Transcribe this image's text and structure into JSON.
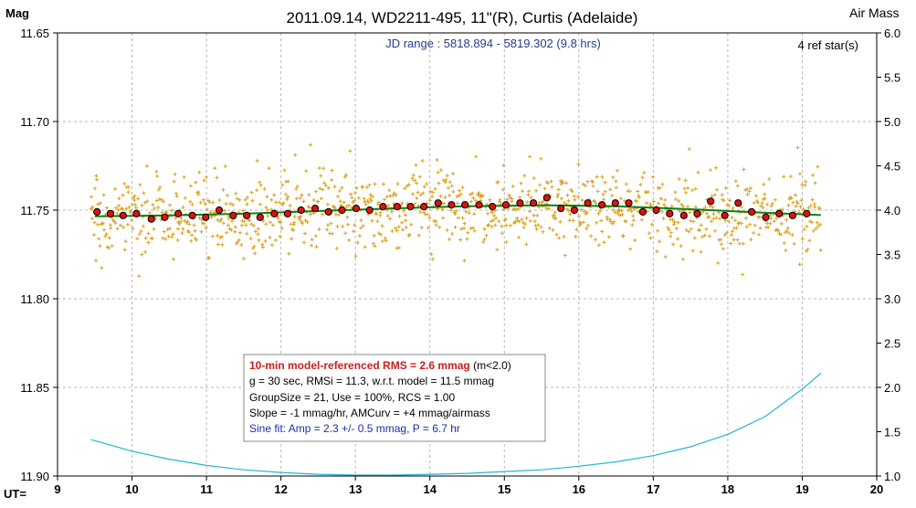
{
  "chart_data": {
    "type": "scatter",
    "title": "2011.09.14, WD2211-495, 11\"(R), Curtis (Adelaide)",
    "subtitle": "JD range : 5818.894 - 5819.302 (9.8 hrs)",
    "ref_stars": "4 ref star(s)",
    "ylabel_left": "Mag",
    "ylabel_right": "Air Mass",
    "xlabel": "UT=",
    "xlim": [
      9,
      20
    ],
    "ylim_left": [
      11.65,
      11.9
    ],
    "ylim_right": [
      1.0,
      6.0
    ],
    "left_inverted": true,
    "grid": true,
    "x_ticks": [
      "9",
      "10",
      "11",
      "12",
      "13",
      "14",
      "15",
      "16",
      "17",
      "18",
      "19",
      "20"
    ],
    "y_ticks_left": [
      "11.65",
      "11.70",
      "11.75",
      "11.80",
      "11.85",
      "11.90"
    ],
    "y_ticks_right": [
      "6.0",
      "5.5",
      "5.0",
      "4.5",
      "4.0",
      "3.5",
      "3.0",
      "2.5",
      "2.0",
      "1.5",
      "1.0"
    ],
    "raw_points_note": "",
    "raw_noise_mmag": 11.3,
    "group_points": {
      "x": [
        9.53,
        9.71,
        9.88,
        10.06,
        10.26,
        10.44,
        10.62,
        10.81,
        10.99,
        11.17,
        11.36,
        11.54,
        11.72,
        11.91,
        12.09,
        12.27,
        12.46,
        12.64,
        12.82,
        13.01,
        13.19,
        13.37,
        13.56,
        13.74,
        13.92,
        14.11,
        14.29,
        14.47,
        14.66,
        14.84,
        15.02,
        15.21,
        15.39,
        15.57,
        15.76,
        15.94,
        16.12,
        16.31,
        16.49,
        16.67,
        16.86,
        17.04,
        17.22,
        17.41,
        17.59,
        17.77,
        17.96,
        18.14,
        18.32,
        18.51,
        18.69,
        18.87,
        19.06
      ],
      "y": [
        11.751,
        11.752,
        11.753,
        11.752,
        11.755,
        11.754,
        11.752,
        11.753,
        11.754,
        11.75,
        11.753,
        11.753,
        11.754,
        11.752,
        11.752,
        11.75,
        11.749,
        11.751,
        11.75,
        11.749,
        11.75,
        11.748,
        11.748,
        11.748,
        11.748,
        11.746,
        11.747,
        11.747,
        11.747,
        11.748,
        11.747,
        11.746,
        11.746,
        11.743,
        11.749,
        11.75,
        11.746,
        11.747,
        11.746,
        11.746,
        11.751,
        11.75,
        11.752,
        11.753,
        11.752,
        11.745,
        11.753,
        11.746,
        11.751,
        11.754,
        11.752,
        11.753,
        11.752
      ]
    },
    "model_curve": {
      "x": [
        9.5,
        10.5,
        11.5,
        12.5,
        13.5,
        14.5,
        15.5,
        16.5,
        17.5,
        18.5,
        19.25
      ],
      "y": [
        11.7535,
        11.753,
        11.752,
        11.7505,
        11.749,
        11.7478,
        11.7472,
        11.7478,
        11.7495,
        11.7515,
        11.7528
      ]
    },
    "airmass_curve": {
      "x": [
        9.45,
        10,
        10.5,
        11,
        11.5,
        12,
        12.5,
        13,
        13.5,
        14,
        14.5,
        15,
        15.5,
        16,
        16.5,
        17,
        17.5,
        18,
        18.5,
        19,
        19.25
      ],
      "airmass": [
        1.41,
        1.28,
        1.19,
        1.12,
        1.07,
        1.04,
        1.02,
        1.01,
        1.01,
        1.02,
        1.03,
        1.05,
        1.07,
        1.11,
        1.16,
        1.23,
        1.33,
        1.47,
        1.67,
        1.98,
        2.16
      ]
    },
    "stats_box": {
      "line1_bold": "10-min model-referenced RMS = 2.6 mmag",
      "line1_rest": " (m<2.0)",
      "line2": "g = 30 sec, RMSi = 11.3, w.r.t. model = 11.5 mmag",
      "line3": "GroupSize = 21, Use = 100%, RCS = 1.00",
      "line4": "Slope = -1 mmag/hr, AMCurv = +4 mmag/airmass",
      "line5": "Sine fit: Amp = 2.3 +/- 0.5 mmag, P = 6.7 hr"
    },
    "colors": {
      "raw": "#d9a21e",
      "group_fill": "#e01010",
      "model": "#108010",
      "airmass": "#22b5d8",
      "title": "#000000",
      "subtitle": "#2b3a8e",
      "stats_bold": "#c81e1e",
      "stats_sine": "#1a2fb0",
      "grid": "#b8b8b8"
    }
  }
}
